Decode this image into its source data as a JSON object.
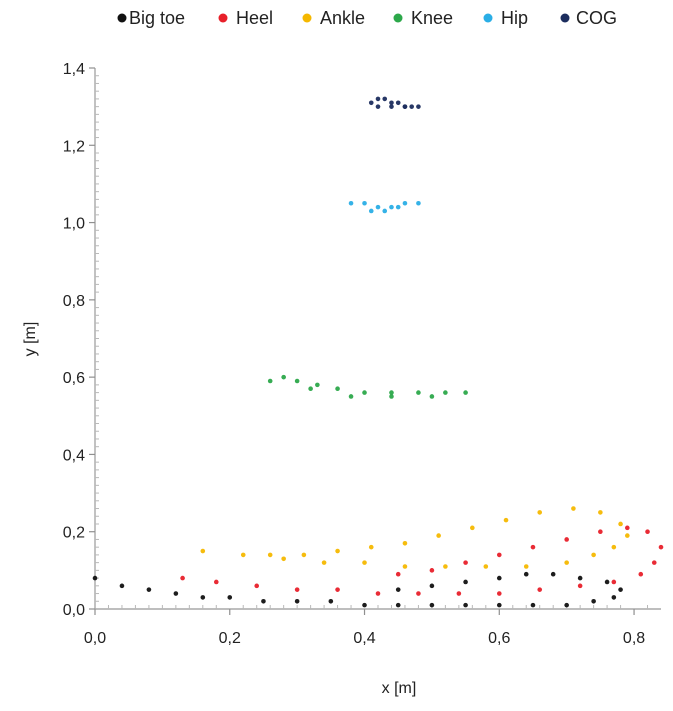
{
  "chart_data": {
    "type": "scatter",
    "title": "",
    "xlabel": "x [m]",
    "ylabel": "y [m]",
    "xlim": [
      0,
      0.84
    ],
    "ylim": [
      0,
      1.4
    ],
    "x_ticks": [
      "0,0",
      "0,2",
      "0,4",
      "0,6",
      "0,8"
    ],
    "y_ticks": [
      "0,0",
      "0,2",
      "0,4",
      "0,6",
      "0,8",
      "1,0",
      "1,2",
      "1,4"
    ],
    "legend_position": "top",
    "series": [
      {
        "name": "Big toe",
        "color": "#111111",
        "x": [
          0.0,
          0.04,
          0.08,
          0.12,
          0.16,
          0.2,
          0.25,
          0.3,
          0.35,
          0.4,
          0.45,
          0.5,
          0.55,
          0.6,
          0.65,
          0.7,
          0.74,
          0.77,
          0.78,
          0.76,
          0.72,
          0.68,
          0.64,
          0.6,
          0.55,
          0.5,
          0.45
        ],
        "y": [
          0.08,
          0.06,
          0.05,
          0.04,
          0.03,
          0.03,
          0.02,
          0.02,
          0.02,
          0.01,
          0.01,
          0.01,
          0.01,
          0.01,
          0.01,
          0.01,
          0.02,
          0.03,
          0.05,
          0.07,
          0.08,
          0.09,
          0.09,
          0.08,
          0.07,
          0.06,
          0.05
        ]
      },
      {
        "name": "Heel",
        "color": "#e8202a",
        "x": [
          0.13,
          0.18,
          0.24,
          0.3,
          0.36,
          0.42,
          0.48,
          0.54,
          0.6,
          0.66,
          0.72,
          0.77,
          0.81,
          0.83,
          0.84,
          0.82,
          0.79,
          0.75,
          0.7,
          0.65,
          0.6,
          0.55,
          0.5,
          0.45
        ],
        "y": [
          0.08,
          0.07,
          0.06,
          0.05,
          0.05,
          0.04,
          0.04,
          0.04,
          0.04,
          0.05,
          0.06,
          0.07,
          0.09,
          0.12,
          0.16,
          0.2,
          0.21,
          0.2,
          0.18,
          0.16,
          0.14,
          0.12,
          0.1,
          0.09
        ]
      },
      {
        "name": "Ankle",
        "color": "#f5b800",
        "x": [
          0.16,
          0.22,
          0.28,
          0.34,
          0.4,
          0.46,
          0.52,
          0.58,
          0.64,
          0.7,
          0.74,
          0.77,
          0.79,
          0.78,
          0.75,
          0.71,
          0.66,
          0.61,
          0.56,
          0.51,
          0.46,
          0.41,
          0.36,
          0.31,
          0.26
        ],
        "y": [
          0.15,
          0.14,
          0.13,
          0.12,
          0.12,
          0.11,
          0.11,
          0.11,
          0.11,
          0.12,
          0.14,
          0.16,
          0.19,
          0.22,
          0.25,
          0.26,
          0.25,
          0.23,
          0.21,
          0.19,
          0.17,
          0.16,
          0.15,
          0.14,
          0.14
        ]
      },
      {
        "name": "Knee",
        "color": "#2ca84a",
        "x": [
          0.26,
          0.28,
          0.3,
          0.33,
          0.36,
          0.4,
          0.44,
          0.48,
          0.52,
          0.55,
          0.32,
          0.38,
          0.44,
          0.5
        ],
        "y": [
          0.59,
          0.6,
          0.59,
          0.58,
          0.57,
          0.56,
          0.56,
          0.56,
          0.56,
          0.56,
          0.57,
          0.55,
          0.55,
          0.55
        ]
      },
      {
        "name": "Hip",
        "color": "#2aaee6",
        "x": [
          0.38,
          0.4,
          0.42,
          0.44,
          0.46,
          0.48,
          0.41,
          0.43,
          0.45
        ],
        "y": [
          1.05,
          1.05,
          1.04,
          1.04,
          1.05,
          1.05,
          1.03,
          1.03,
          1.04
        ]
      },
      {
        "name": "COG",
        "color": "#1c2d5e",
        "x": [
          0.41,
          0.42,
          0.43,
          0.44,
          0.45,
          0.46,
          0.47,
          0.48,
          0.42,
          0.44,
          0.46
        ],
        "y": [
          1.31,
          1.32,
          1.32,
          1.31,
          1.31,
          1.3,
          1.3,
          1.3,
          1.3,
          1.3,
          1.3
        ]
      }
    ]
  }
}
